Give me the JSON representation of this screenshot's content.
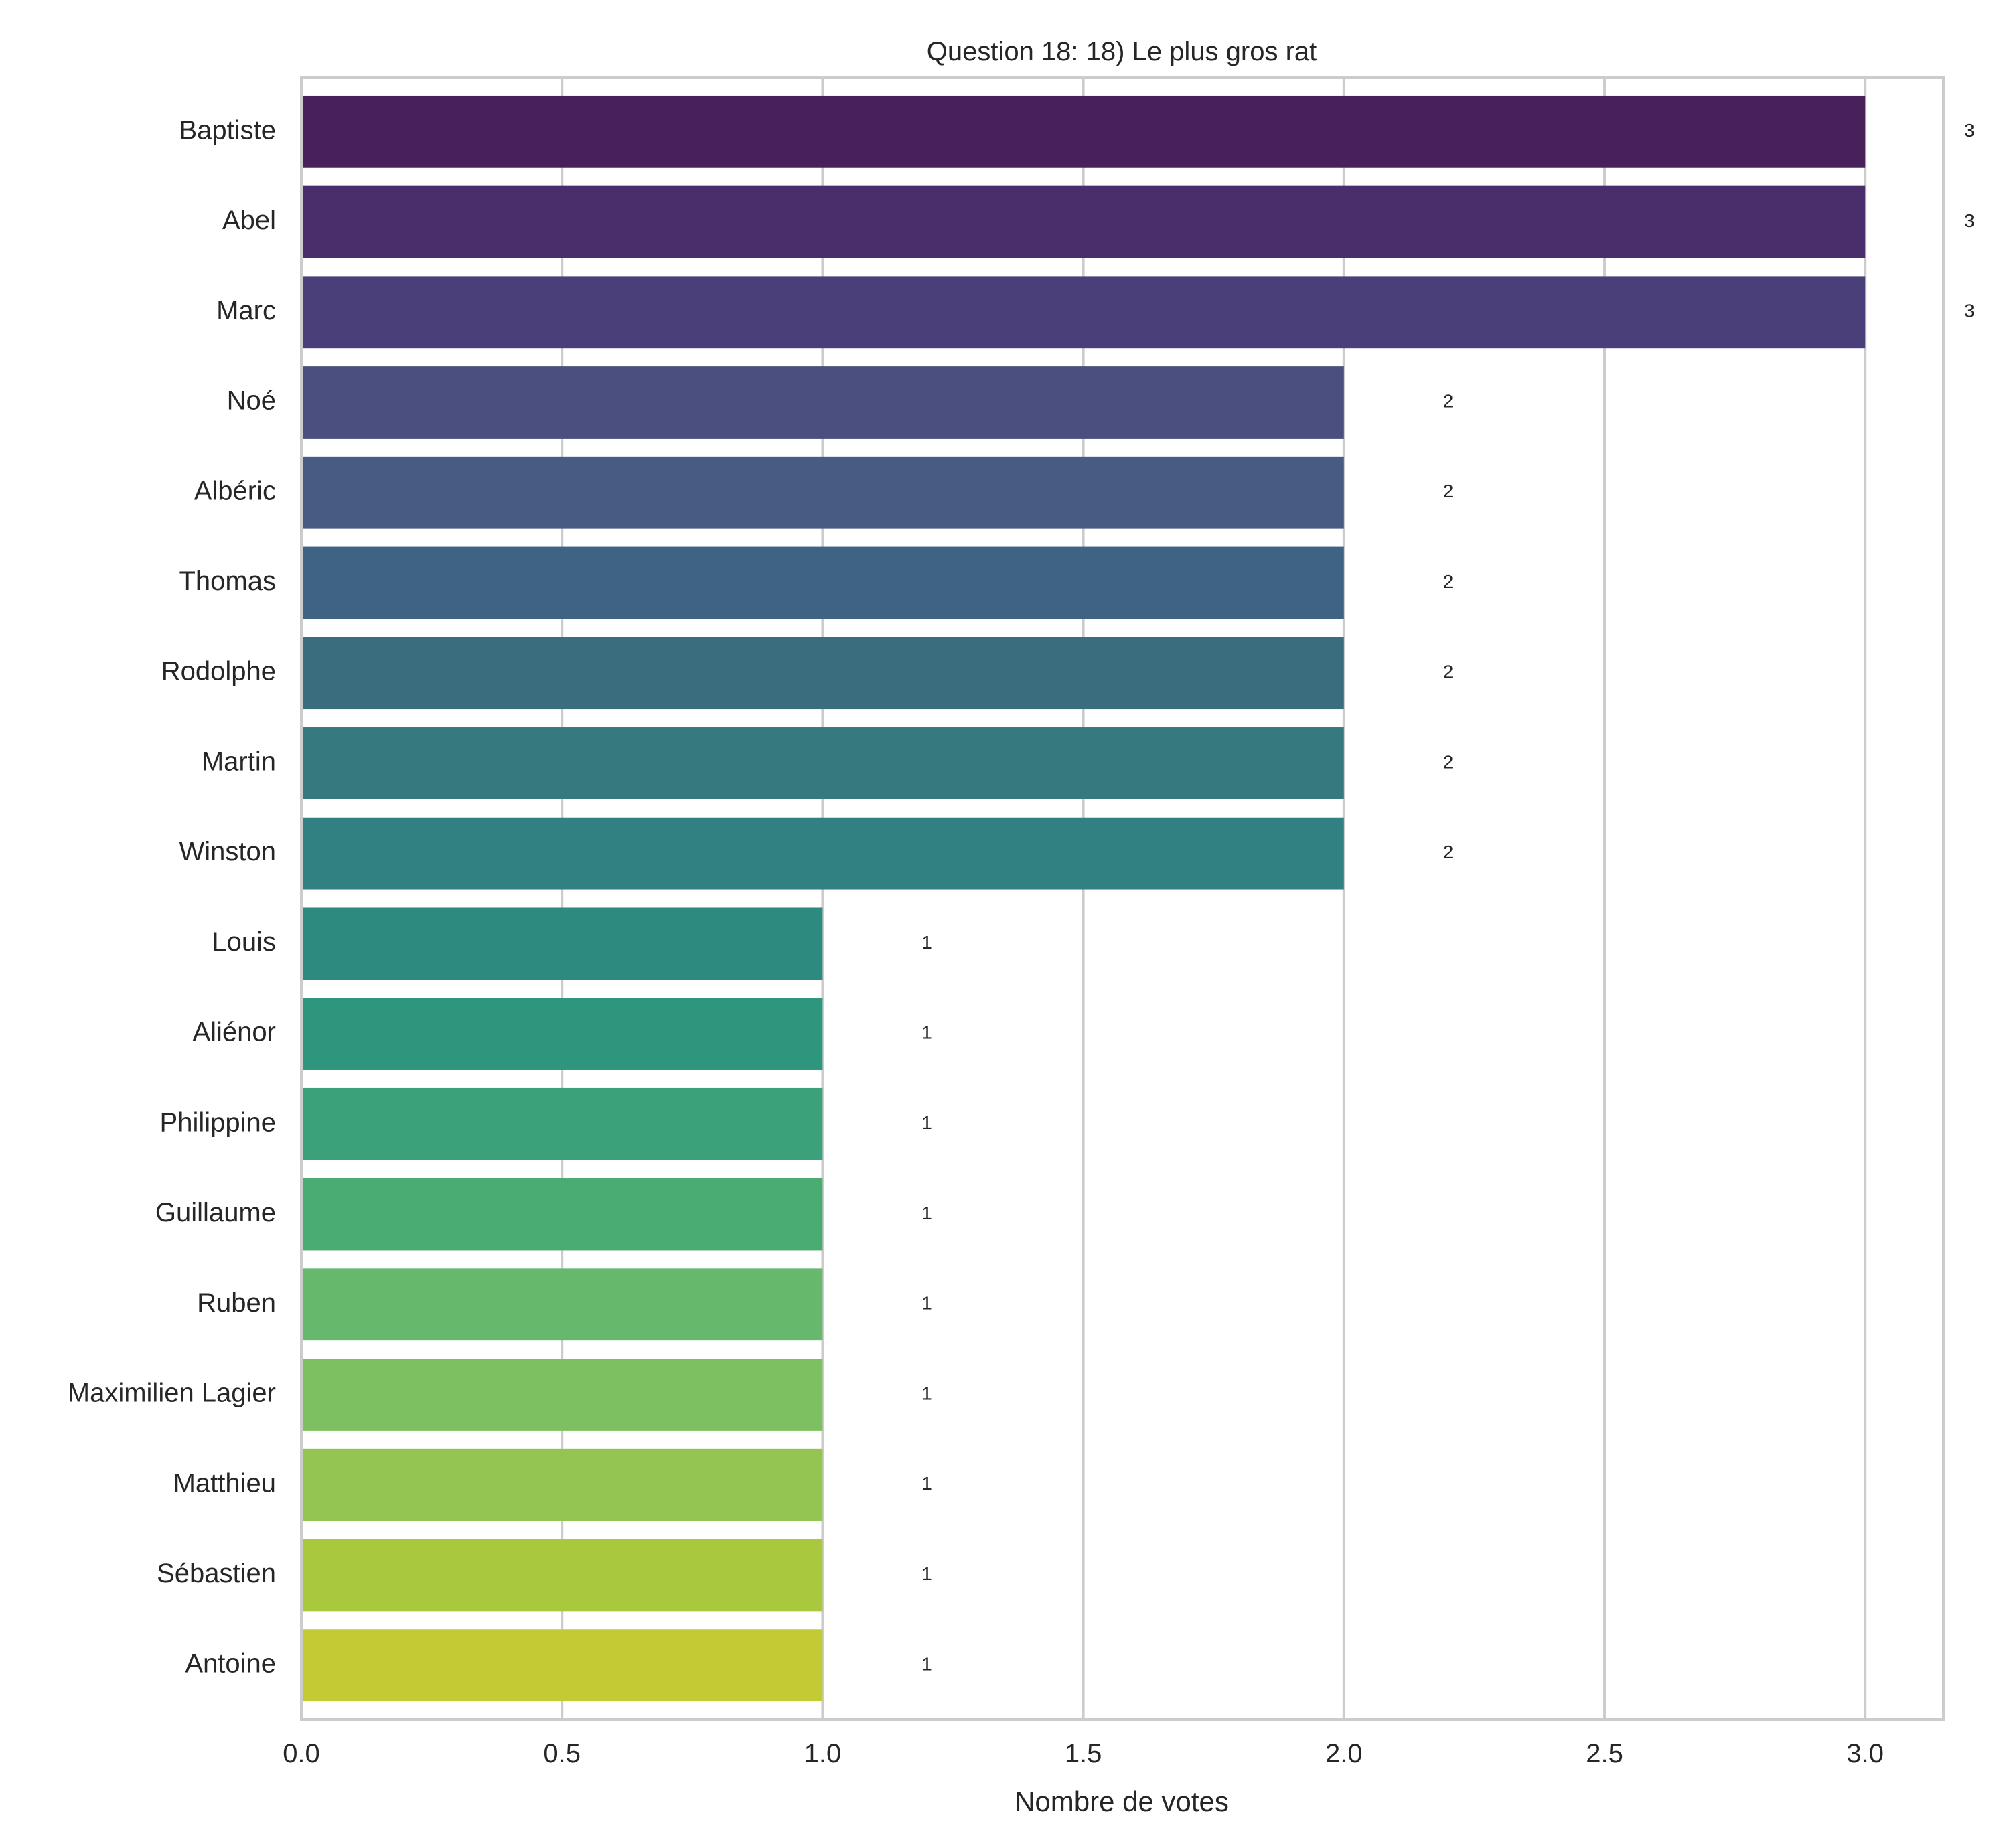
{
  "chart_data": {
    "type": "bar",
    "orientation": "horizontal",
    "title": "Question 18: 18) Le plus gros rat",
    "xlabel": "Nombre de votes",
    "ylabel": "",
    "xlim": [
      0,
      3.15
    ],
    "xticks": [
      0.0,
      0.5,
      1.0,
      1.5,
      2.0,
      2.5,
      3.0
    ],
    "xtick_labels": [
      "0.0",
      "0.5",
      "1.0",
      "1.5",
      "2.0",
      "2.5",
      "3.0"
    ],
    "grid": true,
    "categories": [
      "Baptiste",
      "Abel",
      "Marc",
      "Noé",
      "Albéric",
      "Thomas",
      "Rodolphe",
      "Martin",
      "Winston",
      "Louis",
      "Aliénor",
      "Philippine",
      "Guillaume",
      "Ruben",
      "Maximilien Lagier",
      "Matthieu",
      "Sébastien",
      "Antoine"
    ],
    "values": [
      3,
      3,
      3,
      2,
      2,
      2,
      2,
      2,
      2,
      1,
      1,
      1,
      1,
      1,
      1,
      1,
      1,
      1
    ],
    "value_labels": [
      "3",
      "3",
      "3",
      "2",
      "2",
      "2",
      "2",
      "2",
      "2",
      "1",
      "1",
      "1",
      "1",
      "1",
      "1",
      "1",
      "1",
      "1"
    ],
    "colors": [
      "#48205a",
      "#4a2d6b",
      "#4a3f78",
      "#4a4f80",
      "#465c82",
      "#3f6382",
      "#3a6e7e",
      "#367a80",
      "#318082",
      "#2c8a7e",
      "#2f967e",
      "#3aa17a",
      "#4aac72",
      "#65b86c",
      "#7cc062",
      "#94c552",
      "#a9c83e",
      "#c4ca33"
    ]
  }
}
